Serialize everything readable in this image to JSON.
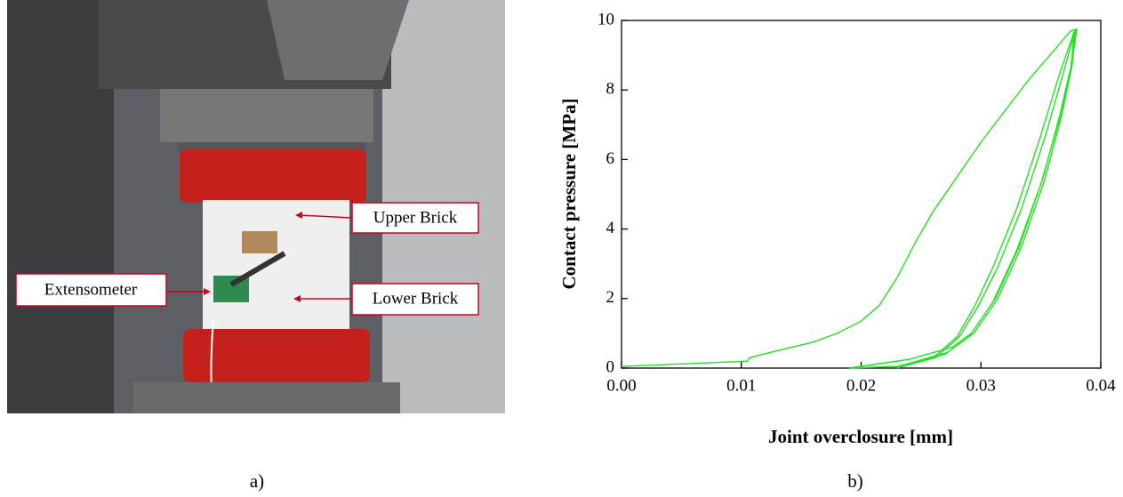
{
  "photo": {
    "labels": [
      "Upper Brick",
      "Lower Brick",
      "Extensometer"
    ]
  },
  "captions": [
    "a)",
    "b)"
  ],
  "chart_data": {
    "type": "line",
    "xlabel": "Joint overclosure [mm]",
    "ylabel": "Contact pressure [MPa]",
    "color": "#22e022",
    "x": [
      0,
      0.005,
      0.0105,
      0.0107,
      0.013,
      0.016,
      0.018,
      0.02,
      0.0215,
      0.023,
      0.0245,
      0.026,
      0.028,
      0.03,
      0.032,
      0.034,
      0.036,
      0.0375,
      0.038,
      0.0376,
      0.0366,
      0.0352,
      0.0332,
      0.0312,
      0.0292,
      0.0276,
      0.024,
      0.019,
      0.023,
      0.026,
      0.028,
      0.0295,
      0.031,
      0.033,
      0.035,
      0.0365,
      0.0378,
      0.0375,
      0.0365,
      0.035,
      0.033,
      0.031,
      0.029,
      0.027,
      0.023,
      0.0235,
      0.0262,
      0.0282,
      0.0298,
      0.0314,
      0.0334,
      0.0354,
      0.0368,
      0.0379,
      0.0376,
      0.0367,
      0.0353,
      0.0334,
      0.0314,
      0.0294,
      0.0272,
      0.0228
    ],
    "values": [
      0.05,
      0.12,
      0.2,
      0.3,
      0.5,
      0.75,
      1.0,
      1.35,
      1.8,
      2.6,
      3.6,
      4.5,
      5.5,
      6.5,
      7.4,
      8.3,
      9.1,
      9.7,
      9.75,
      8.8,
      7.3,
      5.5,
      3.5,
      2.0,
      1.0,
      0.6,
      0.25,
      0,
      0.05,
      0.3,
      0.9,
      1.8,
      2.9,
      4.6,
      6.7,
      8.4,
      9.7,
      8.6,
      7.1,
      5.3,
      3.4,
      1.9,
      0.9,
      0.4,
      0.0,
      0.05,
      0.3,
      0.9,
      1.8,
      2.9,
      4.6,
      6.7,
      8.4,
      9.75,
      8.7,
      7.2,
      5.4,
      3.5,
      2.0,
      1.0,
      0.45,
      0.02
    ],
    "xlim": [
      0,
      0.04
    ],
    "ylim": [
      0,
      10
    ],
    "xticks": [
      {
        "value": 0,
        "label": "0.00"
      },
      0.01,
      0.02,
      0.03,
      0.04
    ],
    "yticks": [
      0,
      2,
      4,
      6,
      8,
      10
    ]
  }
}
